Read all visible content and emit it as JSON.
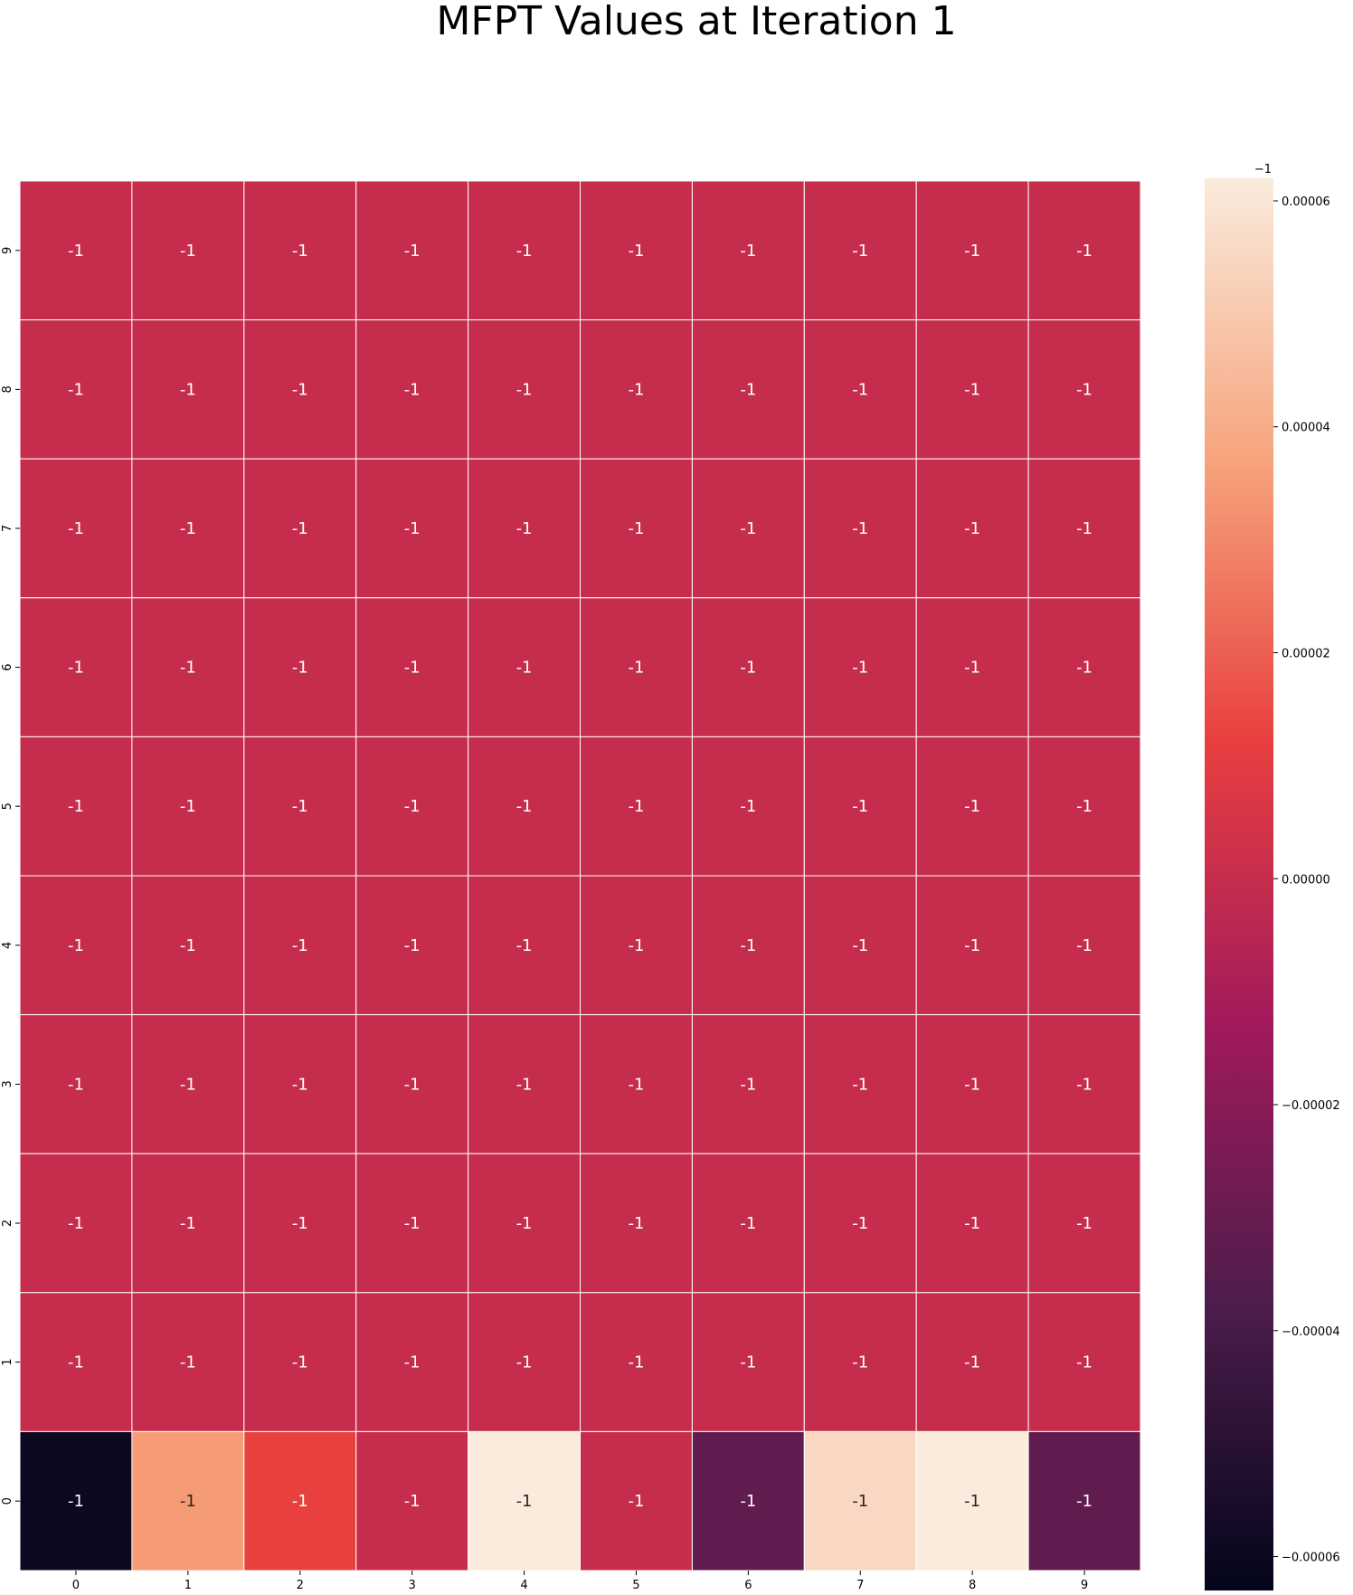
{
  "chart_data": {
    "type": "heatmap",
    "title": "MFPT Values at Iteration 1",
    "xlabel": "",
    "ylabel": "",
    "x_ticks": [
      "0",
      "1",
      "2",
      "3",
      "4",
      "5",
      "6",
      "7",
      "8",
      "9"
    ],
    "y_ticks": [
      "9",
      "8",
      "7",
      "6",
      "5",
      "4",
      "3",
      "2",
      "1",
      "0"
    ],
    "cell_annotation": "-1",
    "rows": [
      {
        "y": "9",
        "values": [
          0,
          0,
          0,
          0,
          0,
          0,
          0,
          0,
          0,
          0
        ]
      },
      {
        "y": "8",
        "values": [
          0,
          0,
          0,
          0,
          0,
          0,
          0,
          0,
          0,
          0
        ]
      },
      {
        "y": "7",
        "values": [
          0,
          0,
          0,
          0,
          0,
          0,
          0,
          0,
          0,
          0
        ]
      },
      {
        "y": "6",
        "values": [
          0,
          0,
          0,
          0,
          0,
          0,
          0,
          0,
          0,
          0
        ]
      },
      {
        "y": "5",
        "values": [
          0,
          0,
          0,
          0,
          0,
          0,
          0,
          0,
          0,
          0
        ]
      },
      {
        "y": "4",
        "values": [
          0,
          0,
          0,
          0,
          0,
          0,
          0,
          0,
          0,
          0
        ]
      },
      {
        "y": "3",
        "values": [
          0,
          0,
          0,
          0,
          0,
          0,
          0,
          0,
          0,
          0
        ]
      },
      {
        "y": "2",
        "values": [
          0,
          0,
          0,
          0,
          0,
          0,
          0,
          0,
          0,
          0
        ]
      },
      {
        "y": "1",
        "values": [
          0,
          0,
          0,
          0,
          0,
          0,
          0,
          0,
          0,
          0
        ]
      },
      {
        "y": "0",
        "values": [
          -6e-05,
          3.5e-05,
          1.2e-05,
          0,
          6.2e-05,
          0,
          -3.2e-05,
          5.5e-05,
          6.2e-05,
          -3.2e-05
        ]
      }
    ],
    "colorbar": {
      "offset_label": "−1",
      "range": [
        -6.3e-05,
        6.2e-05
      ],
      "ticks": [
        6e-05,
        4e-05,
        2e-05,
        0.0,
        -2e-05,
        -4e-05,
        -6e-05
      ],
      "tick_labels": [
        "0.00006",
        "0.00004",
        "0.00002",
        "0.00000",
        "−0.00002",
        "−0.00004",
        "−0.00006"
      ],
      "colormap": "rocket",
      "colormap_stops": [
        "#03051a",
        "#4c1d4b",
        "#a11a5b",
        "#e83f3f",
        "#f6a47c",
        "#faebdd"
      ]
    },
    "grid_line_color": "#ffffff",
    "dark_text_color": "#262626",
    "light_text_color": "#ffffff"
  }
}
